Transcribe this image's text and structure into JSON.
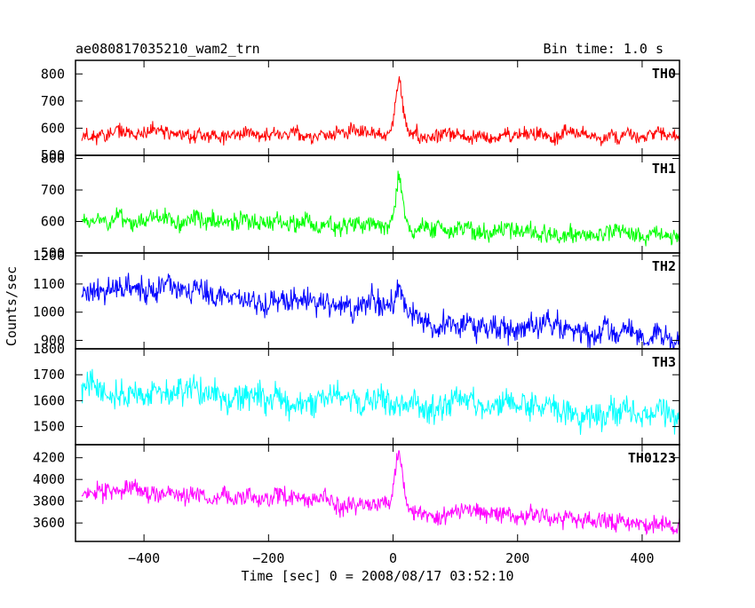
{
  "header": {
    "title": "ae080817035210_wam2_trn",
    "bin_time": "Bin time: 1.0 s"
  },
  "y_axis_label": "Counts/sec",
  "x_axis_label": "Time [sec] 0 = 2008/08/17 03:52:10",
  "chart_data": [
    {
      "type": "line",
      "series": [
        {
          "name": "TH0",
          "color": "#ff0000"
        }
      ],
      "ylim": [
        500,
        850
      ],
      "yticks": [
        500,
        600,
        700,
        800
      ],
      "xlim": [
        -510,
        460
      ],
      "x_range_data": [
        -500,
        460
      ],
      "baseline": 575,
      "noise": 22,
      "trend": 0,
      "burst": 185,
      "post_step": 0,
      "seed": 11
    },
    {
      "type": "line",
      "series": [
        {
          "name": "TH1",
          "color": "#00ff00"
        }
      ],
      "ylim": [
        500,
        810
      ],
      "yticks": [
        500,
        600,
        700,
        800
      ],
      "xlim": [
        -510,
        460
      ],
      "x_range_data": [
        -500,
        460
      ],
      "baseline": 612,
      "noise": 24,
      "trend": -40,
      "burst": 165,
      "post_step": -15,
      "seed": 23
    },
    {
      "type": "line",
      "series": [
        {
          "name": "TH2",
          "color": "#0000ff"
        }
      ],
      "ylim": [
        870,
        1210
      ],
      "yticks": [
        900,
        1000,
        1100,
        1200
      ],
      "xlim": [
        -510,
        460
      ],
      "x_range_data": [
        -500,
        460
      ],
      "baseline": 1085,
      "noise": 38,
      "trend": -130,
      "burst": 60,
      "post_step": -40,
      "seed": 37
    },
    {
      "type": "line",
      "series": [
        {
          "name": "TH3",
          "color": "#00ffff"
        }
      ],
      "ylim": [
        1430,
        1800
      ],
      "yticks": [
        1500,
        1600,
        1700,
        1800
      ],
      "xlim": [
        -510,
        460
      ],
      "x_range_data": [
        -500,
        460
      ],
      "baseline": 1640,
      "noise": 45,
      "trend": -90,
      "burst": 0,
      "post_step": 0,
      "seed": 41
    },
    {
      "type": "line",
      "series": [
        {
          "name": "TH0123",
          "color": "#ff00ff"
        }
      ],
      "ylim": [
        3430,
        4320
      ],
      "yticks": [
        3600,
        3800,
        4000,
        4200
      ],
      "xlim": [
        -510,
        460
      ],
      "x_range_data": [
        -500,
        460
      ],
      "baseline": 3915,
      "noise": 70,
      "trend": -260,
      "burst": 460,
      "post_step": -60,
      "seed": 53
    }
  ],
  "xticks": [
    -400,
    -200,
    0,
    200,
    400
  ]
}
